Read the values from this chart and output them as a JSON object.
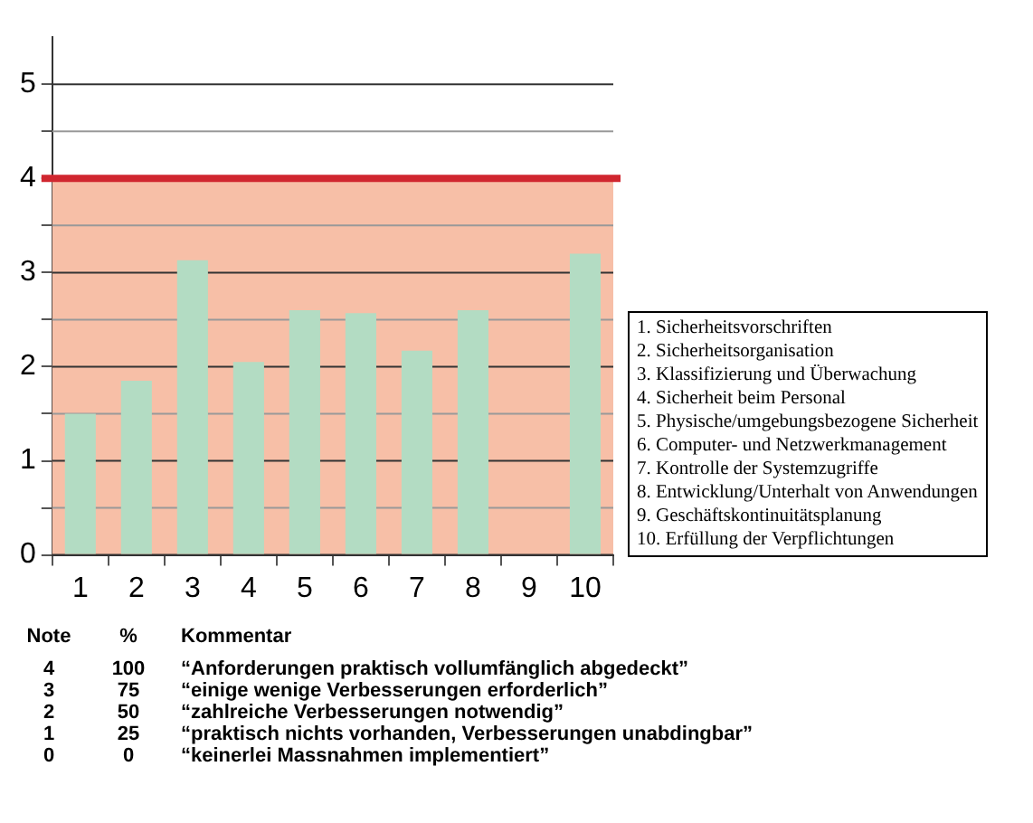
{
  "chart_data": {
    "type": "bar",
    "categories": [
      "1",
      "2",
      "3",
      "4",
      "5",
      "6",
      "7",
      "8",
      "9",
      "10"
    ],
    "values": [
      1.5,
      1.85,
      3.13,
      2.05,
      2.6,
      2.57,
      2.17,
      2.6,
      null,
      3.2
    ],
    "color": "#b3dcc3",
    "ylim": [
      0,
      5.5
    ],
    "yticks": [
      0,
      {
        "value": 0.5,
        "label": null
      },
      1,
      {
        "value": 1.5,
        "label": null
      },
      2,
      {
        "value": 2.5,
        "label": null
      },
      3,
      {
        "value": 3.5,
        "label": null
      },
      4,
      {
        "value": 4.5,
        "label": null
      },
      5
    ],
    "grid": "y",
    "legend": false,
    "bands": [
      {
        "axis": "y",
        "from": 0,
        "to": 4,
        "color": "#f7bfa7"
      }
    ],
    "ref_lines": [
      {
        "axis": "y",
        "value": 4,
        "color": "#d0262f"
      }
    ],
    "annotations": [
      "1. Sicherheitsvorschriften",
      "2. Sicherheitsorganisation",
      "3. Klassifizierung und Überwachung",
      "4. Sicherheit beim Personal",
      "5. Physische/umgebungsbezogene Sicherheit",
      "6. Computer- und Netzwerkmanagement",
      "7. Kontrolle der Systemzugriffe",
      "8. Entwicklung/Unterhalt von Anwendungen",
      "9. Geschäftskontinuitätsplanung",
      "10. Erfüllung der Verpflichtungen",
      "Note",
      "%",
      "Kommentar",
      "4",
      "100",
      "“Anforderungen praktisch vollumfänglich abgedeckt”",
      "3",
      "75",
      "“einige wenige Verbesserungen erforderlich”",
      "2",
      "50",
      "“zahlreiche Verbesserungen notwendig”",
      "1",
      "25",
      "“praktisch nichts vorhanden, Verbesserungen unabdingbar”",
      "0",
      "0",
      "“keinerlei Massnahmen implementiert”"
    ]
  }
}
